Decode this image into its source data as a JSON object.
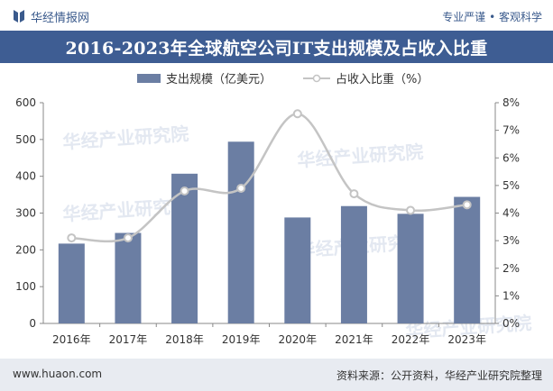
{
  "header": {
    "brand": "华经情报网",
    "tagline": "专业严谨 • 客观科学",
    "title": "2016-2023年全球航空公司IT支出规模及占收入比重"
  },
  "watermark": "华经产业研究院",
  "footer": {
    "url": "www.huaon.com",
    "source": "资料来源：公开资料，华经产业研究院整理"
  },
  "colors": {
    "bar": "#6b7ea3",
    "line": "#c4c4c4",
    "title_bg": "#3e5d93",
    "footer_bg": "#e8ebf1"
  },
  "chart_data": {
    "type": "bar",
    "title": "2016-2023年全球航空公司IT支出规模及占收入比重",
    "categories": [
      "2016年",
      "2017年",
      "2018年",
      "2019年",
      "2020年",
      "2021年",
      "2022年",
      "2023年"
    ],
    "series": [
      {
        "name": "支出规模（亿美元）",
        "type": "bar",
        "axis": "left",
        "values": [
          217,
          246,
          407,
          494,
          288,
          319,
          298,
          344
        ]
      },
      {
        "name": "占收入比重（%）",
        "type": "line",
        "axis": "right",
        "values": [
          3.1,
          3.1,
          4.8,
          4.9,
          7.6,
          4.7,
          4.1,
          4.3
        ]
      }
    ],
    "y_left": {
      "min": 0,
      "max": 600,
      "ticks": [
        "0",
        "100",
        "200",
        "300",
        "400",
        "500",
        "600"
      ]
    },
    "y_right": {
      "min": 0,
      "max": 8,
      "ticks": [
        "0%",
        "1%",
        "2%",
        "3%",
        "4%",
        "5%",
        "6%",
        "7%",
        "8%"
      ]
    },
    "legend_position": "top-center",
    "grid": false
  }
}
